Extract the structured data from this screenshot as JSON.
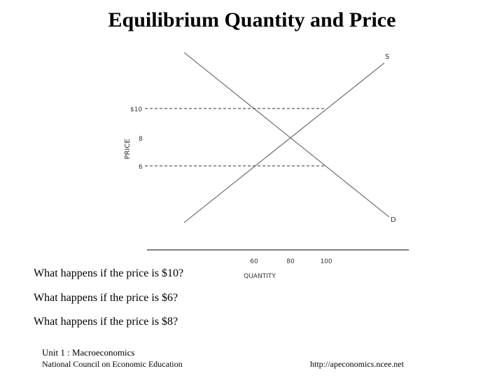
{
  "title": "Equilibrium Quantity and Price",
  "diagram": {
    "y_axis_label": "PRICE",
    "x_axis_label": "QUANTITY",
    "price_ticks": [
      "$10",
      "8",
      "6"
    ],
    "quantity_ticks": [
      "60",
      "80",
      "100"
    ],
    "supply_label": "S",
    "demand_label": "D",
    "line_color": "#555555"
  },
  "questions": [
    "What happens if the price is $10?",
    "What happens if the price is $6?",
    "What happens if the price is $8?"
  ],
  "footer": {
    "course": "Unit 1 : Macroeconomics",
    "organization": "National Council on Economic Education",
    "url": "http://apeconomics.ncee.net"
  }
}
